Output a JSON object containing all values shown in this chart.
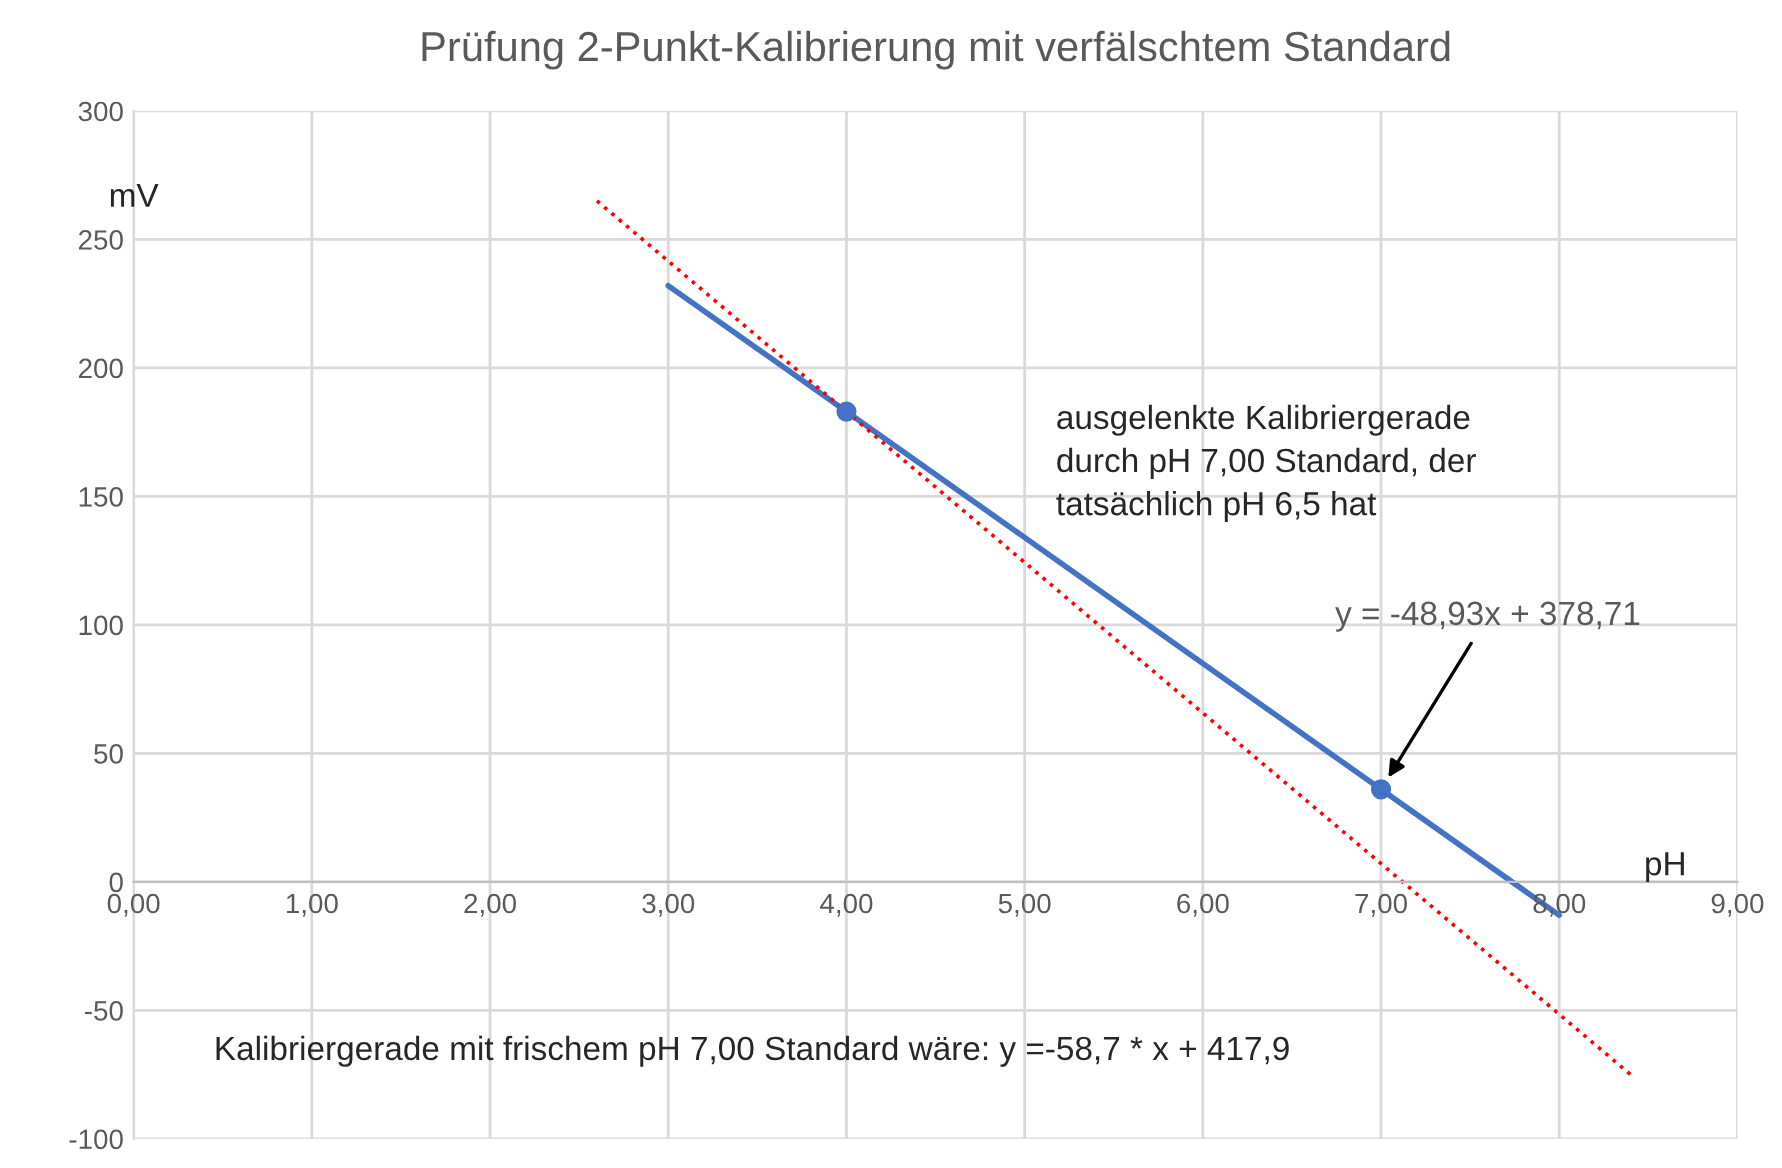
{
  "chart_data": {
    "type": "line",
    "title": "Prüfung 2-Punkt-Kalibrierung mit verfälschtem Standard",
    "xlabel": "pH",
    "ylabel": "mV",
    "xlim": [
      0,
      9
    ],
    "xticks": [
      {
        "value": 0,
        "label": "0,00"
      },
      {
        "value": 1,
        "label": "1,00"
      },
      {
        "value": 2,
        "label": "2,00"
      },
      {
        "value": 3,
        "label": "3,00"
      },
      {
        "value": 4,
        "label": "4,00"
      },
      {
        "value": 5,
        "label": "5,00"
      },
      {
        "value": 6,
        "label": "6,00"
      },
      {
        "value": 7,
        "label": "7,00"
      },
      {
        "value": 8,
        "label": "8,00"
      },
      {
        "value": 9,
        "label": "9,00"
      }
    ],
    "ylim": [
      -100,
      300
    ],
    "yticks": [
      -100,
      -50,
      0,
      50,
      100,
      150,
      200,
      250,
      300
    ],
    "grid": true,
    "legend": false,
    "series": [
      {
        "x": [
          3,
          8
        ],
        "values": [
          232,
          -13
        ],
        "color": "#4472c4",
        "line_style": "solid",
        "marker": "none"
      },
      {
        "type": "scatter",
        "x": [
          4,
          7
        ],
        "values": [
          183,
          36
        ],
        "color": "#4472c4",
        "marker": "circle"
      },
      {
        "x": [
          2.6,
          8.4
        ],
        "values": [
          265,
          -75
        ],
        "color": "#ff0000",
        "line_style": "dotted",
        "marker": "none"
      }
    ],
    "annotations": [
      "ausgelenkte Kalibriergerade\ndurch pH 7,00 Standard, der\ntatsächlich pH 6,5 hat",
      {
        "text": "y = -48,93x + 378,71",
        "x": 7,
        "y": 36
      },
      "Kalibriergerade mit frischem pH 7,00 Standard wäre: y =-58,7 * x + 417,9"
    ]
  }
}
